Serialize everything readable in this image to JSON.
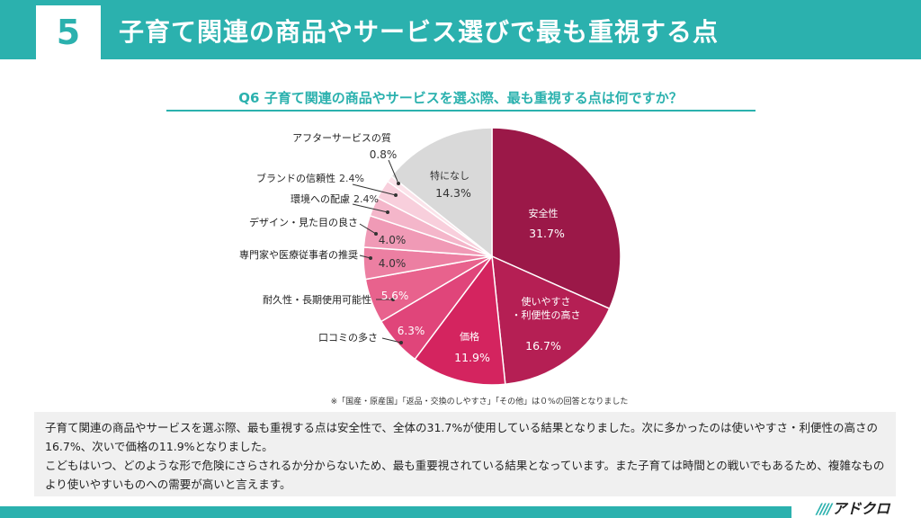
{
  "header": {
    "number": "5",
    "title": "子育て関連の商品やサービス選びで最も重視する点"
  },
  "question": "Q6 子育て関連の商品やサービスを選ぶ際、最も重視する点は何ですか？",
  "chart_data": {
    "type": "pie",
    "title": "",
    "slices": [
      {
        "label": "安全性",
        "value": 31.7,
        "display": "31.7%",
        "color": "#9b1848"
      },
      {
        "label": "使いやすさ・利便性の高さ",
        "value": 16.7,
        "display": "16.7%",
        "color": "#b51f54"
      },
      {
        "label": "価格",
        "value": 11.9,
        "display": "11.9%",
        "color": "#d4245f"
      },
      {
        "label": "口コミの多さ",
        "value": 6.3,
        "display": "6.3%",
        "color": "#e0457a"
      },
      {
        "label": "耐久性・長期使用可能性",
        "value": 5.6,
        "display": "5.6%",
        "color": "#e8628d"
      },
      {
        "label": "専門家や医療従事者の推奨",
        "value": 4.0,
        "display": "4.0%",
        "color": "#ec7fa2"
      },
      {
        "label": "デザイン・見た目の良さ",
        "value": 4.0,
        "display": "4.0%",
        "color": "#f09ab6"
      },
      {
        "label": "環境への配慮",
        "value": 2.4,
        "display": "2.4%",
        "color": "#f4b6ca"
      },
      {
        "label": "ブランドの信頼性",
        "value": 2.4,
        "display": "2.4%",
        "color": "#f8cfdc"
      },
      {
        "label": "アフターサービスの質",
        "value": 0.8,
        "display": "0.8%",
        "color": "#fbe3ea"
      },
      {
        "label": "特になし",
        "value": 14.3,
        "display": "14.3%",
        "color": "#d9d9d9"
      }
    ]
  },
  "note": "※「国産・原産国」「返品・交換のしやすさ」「その他」は０%の回答となりました",
  "summary": {
    "para1": "子育て関連の商品やサービスを選ぶ際、最も重視する点は安全性で、全体の31.7%が使用している結果となりました。次に多かったのは使いやすさ・利便性の高さの16.7%、次いで価格の11.9%となりました。",
    "para2": "こどもはいつ、どのような形で危険にさらされるか分からないため、最も重要視されている結果となっています。また子育ては時間との戦いでもあるため、複雑なものより使いやすいものへの需要が高いと言えます。"
  },
  "logo": {
    "marks": "////",
    "text": "アドクロ"
  }
}
